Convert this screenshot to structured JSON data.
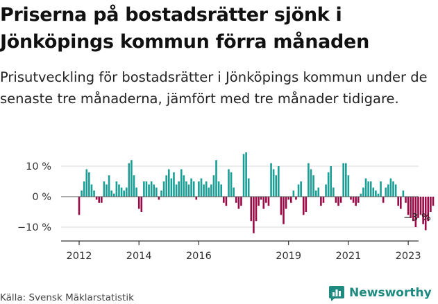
{
  "title": "Priserna på bostadsrätter sjönk i Jönköpings kommun förra månaden",
  "subtitle": "Prisutveckling för bostadsrätter i Jönköpings kommun under de senaste tre månaderna, jämfört med tre månader tidigare.",
  "source": "Källa: Svensk Mäklarstatistik",
  "brand": "Newsworthy",
  "colors": {
    "positive": "#1a9e96",
    "negative": "#9b0a47",
    "brand": "#1f8a7f",
    "axis": "#333333",
    "grid": "#d9d9d9"
  },
  "chart_data": {
    "type": "bar",
    "title": "",
    "xlabel": "",
    "ylabel": "",
    "ylim": [
      -14,
      12
    ],
    "yticks": [
      10,
      0,
      -10
    ],
    "ytick_labels": [
      "10 %",
      "0 %",
      "−10 %"
    ],
    "xticks": [
      2012,
      2014,
      2016,
      2019,
      2021,
      2023
    ],
    "xtick_labels": [
      "2012",
      "2014",
      "2016",
      "2019",
      "2021",
      "2023"
    ],
    "x_start": 2012.0,
    "x_step": 0.08333,
    "annotation": {
      "text": "−3 %",
      "index": 135
    },
    "values": [
      -6,
      2,
      5,
      9,
      8,
      4,
      2,
      -1,
      -2,
      -2,
      5,
      4,
      7,
      2,
      1,
      5,
      4,
      3,
      2,
      3,
      11,
      12,
      7,
      3,
      -4,
      -5,
      5,
      5,
      4,
      5,
      4,
      3,
      -1,
      2,
      5,
      7,
      9,
      6,
      8,
      4,
      5,
      9,
      7,
      5,
      4,
      6,
      5,
      -1,
      5,
      6,
      4,
      5,
      3,
      4,
      7,
      12,
      5,
      4,
      -2,
      -3,
      9,
      8,
      3,
      -2,
      -4,
      -3,
      14,
      15,
      6,
      -8,
      -12,
      -8,
      -3,
      -1,
      -4,
      -2,
      -3,
      11,
      9,
      7,
      10,
      -6,
      -9,
      -4,
      -1,
      -2,
      2,
      -1,
      4,
      5,
      -6,
      -5,
      11,
      9,
      7,
      2,
      3,
      -3,
      -2,
      4,
      8,
      10,
      3,
      -2,
      -3,
      -2,
      11,
      11,
      7,
      -1,
      -2,
      -3,
      -2,
      1,
      3,
      6,
      5,
      5,
      3,
      2,
      1,
      5,
      -2,
      3,
      4,
      6,
      5,
      4,
      -3,
      -4,
      2,
      -2,
      -6,
      -7,
      -8,
      -10,
      -7,
      -6,
      -9,
      -11,
      -8,
      -5,
      -3
    ]
  }
}
